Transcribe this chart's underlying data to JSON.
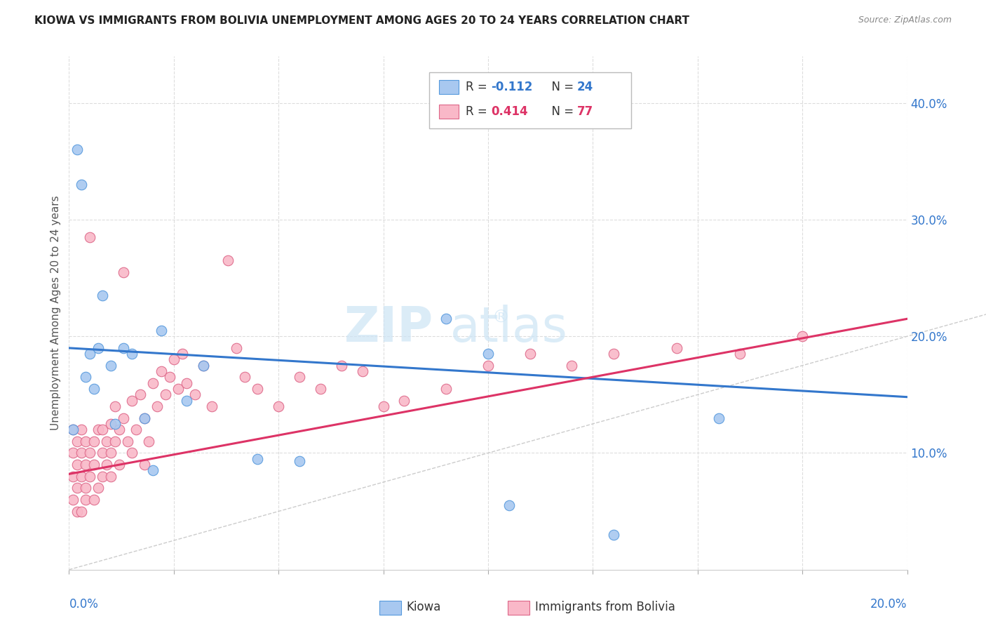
{
  "title": "KIOWA VS IMMIGRANTS FROM BOLIVIA UNEMPLOYMENT AMONG AGES 20 TO 24 YEARS CORRELATION CHART",
  "source": "Source: ZipAtlas.com",
  "ylabel": "Unemployment Among Ages 20 to 24 years",
  "xlim": [
    0.0,
    0.2
  ],
  "ylim": [
    0.0,
    0.44
  ],
  "yticks_right": [
    0.1,
    0.2,
    0.3,
    0.4
  ],
  "ytick_labels_right": [
    "10.0%",
    "20.0%",
    "30.0%",
    "40.0%"
  ],
  "kiowa_color": "#a8c8f0",
  "kiowa_edge_color": "#5599dd",
  "bolivia_color": "#f9b8c8",
  "bolivia_edge_color": "#dd6688",
  "line_kiowa_color": "#3377cc",
  "line_bolivia_color": "#dd3366",
  "diag_color": "#cccccc",
  "kiowa_line_x0": 0.0,
  "kiowa_line_y0": 0.19,
  "kiowa_line_x1": 0.2,
  "kiowa_line_y1": 0.148,
  "bolivia_line_x0": 0.0,
  "bolivia_line_y0": 0.082,
  "bolivia_line_x1": 0.2,
  "bolivia_line_y1": 0.215,
  "kiowa_x": [
    0.001,
    0.002,
    0.003,
    0.004,
    0.005,
    0.006,
    0.007,
    0.008,
    0.01,
    0.011,
    0.013,
    0.015,
    0.018,
    0.02,
    0.022,
    0.028,
    0.032,
    0.045,
    0.055,
    0.09,
    0.1,
    0.105,
    0.13,
    0.155
  ],
  "kiowa_y": [
    0.12,
    0.36,
    0.33,
    0.165,
    0.185,
    0.155,
    0.19,
    0.235,
    0.175,
    0.125,
    0.19,
    0.185,
    0.13,
    0.085,
    0.205,
    0.145,
    0.175,
    0.095,
    0.093,
    0.215,
    0.185,
    0.055,
    0.03,
    0.13
  ],
  "bolivia_x": [
    0.001,
    0.001,
    0.001,
    0.001,
    0.002,
    0.002,
    0.002,
    0.002,
    0.003,
    0.003,
    0.003,
    0.003,
    0.004,
    0.004,
    0.004,
    0.004,
    0.005,
    0.005,
    0.005,
    0.006,
    0.006,
    0.006,
    0.007,
    0.007,
    0.008,
    0.008,
    0.008,
    0.009,
    0.009,
    0.01,
    0.01,
    0.01,
    0.011,
    0.011,
    0.012,
    0.012,
    0.013,
    0.013,
    0.014,
    0.015,
    0.015,
    0.016,
    0.017,
    0.018,
    0.018,
    0.019,
    0.02,
    0.021,
    0.022,
    0.023,
    0.024,
    0.025,
    0.026,
    0.027,
    0.028,
    0.03,
    0.032,
    0.034,
    0.038,
    0.04,
    0.042,
    0.045,
    0.05,
    0.055,
    0.06,
    0.065,
    0.07,
    0.075,
    0.08,
    0.09,
    0.1,
    0.11,
    0.12,
    0.13,
    0.145,
    0.16,
    0.175
  ],
  "bolivia_y": [
    0.12,
    0.1,
    0.08,
    0.06,
    0.09,
    0.07,
    0.11,
    0.05,
    0.08,
    0.1,
    0.12,
    0.05,
    0.09,
    0.07,
    0.11,
    0.06,
    0.1,
    0.08,
    0.285,
    0.11,
    0.09,
    0.06,
    0.12,
    0.07,
    0.1,
    0.08,
    0.12,
    0.09,
    0.11,
    0.1,
    0.125,
    0.08,
    0.14,
    0.11,
    0.12,
    0.09,
    0.255,
    0.13,
    0.11,
    0.145,
    0.1,
    0.12,
    0.15,
    0.13,
    0.09,
    0.11,
    0.16,
    0.14,
    0.17,
    0.15,
    0.165,
    0.18,
    0.155,
    0.185,
    0.16,
    0.15,
    0.175,
    0.14,
    0.265,
    0.19,
    0.165,
    0.155,
    0.14,
    0.165,
    0.155,
    0.175,
    0.17,
    0.14,
    0.145,
    0.155,
    0.175,
    0.185,
    0.175,
    0.185,
    0.19,
    0.185,
    0.2
  ]
}
